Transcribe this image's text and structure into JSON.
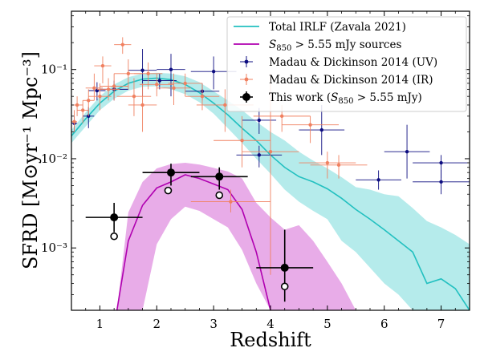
{
  "chart_data": {
    "type": "scatter",
    "title": "",
    "xlabel": "Redshift",
    "ylabel": "SFRD [M⊙yr⁻¹ Mpc⁻³]",
    "xlim": [
      0.5,
      7.5
    ],
    "ylim": [
      0.0002,
      0.45
    ],
    "yscale": "log",
    "x_ticks": [
      1,
      2,
      3,
      4,
      5,
      6,
      7
    ],
    "y_ticks": [
      {
        "value": 0.1,
        "label": "10⁻¹"
      },
      {
        "value": 0.01,
        "label": "10⁻²"
      },
      {
        "value": 0.001,
        "label": "10⁻³"
      }
    ],
    "legend_position": "top-right",
    "colors": {
      "total_irlf": "#22c0c0",
      "total_irlf_band": "#a8e8e8",
      "sources": "#b000b0",
      "sources_band": "#e6a3e6",
      "md_uv": "#0d0d80",
      "md_ir": "#f08060",
      "this_work": "#000000"
    },
    "series": [
      {
        "name": "Total IRLF (Zavala 2021)",
        "kind": "line_band",
        "color_key": "total_irlf",
        "band_color_key": "total_irlf_band",
        "x": [
          0.5,
          0.75,
          1.0,
          1.25,
          1.5,
          1.75,
          2.0,
          2.25,
          2.5,
          2.75,
          3.0,
          3.25,
          3.5,
          3.75,
          4.0,
          4.25,
          4.5,
          4.75,
          5.0,
          5.25,
          5.5,
          5.75,
          6.0,
          6.25,
          6.5,
          6.75,
          7.0,
          7.25,
          7.5
        ],
        "y": [
          0.018,
          0.028,
          0.042,
          0.057,
          0.07,
          0.078,
          0.08,
          0.077,
          0.068,
          0.055,
          0.042,
          0.031,
          0.022,
          0.016,
          0.011,
          0.008,
          0.0063,
          0.0055,
          0.0046,
          0.0036,
          0.0027,
          0.0021,
          0.0016,
          0.0012,
          0.0009,
          0.0004,
          0.00045,
          0.00035,
          0.0002
        ],
        "y_low": [
          0.015,
          0.023,
          0.035,
          0.047,
          0.058,
          0.064,
          0.065,
          0.06,
          0.053,
          0.043,
          0.032,
          0.022,
          0.015,
          0.01,
          0.0068,
          0.0045,
          0.0033,
          0.0026,
          0.0021,
          0.0012,
          0.0009,
          0.0006,
          0.0004,
          0.0003,
          0.0002,
          0.0002,
          0.0002,
          0.0002,
          0.0002
        ],
        "y_high": [
          0.021,
          0.033,
          0.05,
          0.068,
          0.082,
          0.09,
          0.092,
          0.09,
          0.084,
          0.072,
          0.057,
          0.045,
          0.035,
          0.026,
          0.02,
          0.016,
          0.012,
          0.0095,
          0.0078,
          0.0062,
          0.0048,
          0.0045,
          0.004,
          0.0038,
          0.0028,
          0.002,
          0.0017,
          0.0014,
          0.0011
        ]
      },
      {
        "name": "$S_{850} > 5.55\\,$mJy sources",
        "kind": "line_band",
        "color_key": "sources",
        "band_color_key": "sources_band",
        "x": [
          1.3,
          1.5,
          1.75,
          2.0,
          2.25,
          2.5,
          2.75,
          3.0,
          3.25,
          3.5,
          3.75,
          4.0,
          4.25,
          4.5,
          4.75,
          5.0,
          5.25,
          5.5
        ],
        "y": [
          0.0002,
          0.0012,
          0.003,
          0.0047,
          0.0055,
          0.0066,
          0.006,
          0.0052,
          0.0045,
          0.0027,
          0.0009,
          0.0002,
          null,
          null,
          null,
          null,
          null,
          null
        ],
        "y_low": [
          0.0002,
          0.0002,
          0.0002,
          0.0011,
          0.0021,
          0.0029,
          0.0026,
          0.0021,
          0.0017,
          0.00095,
          0.0004,
          0.0002,
          0.0002,
          0.0002,
          0.0002,
          0.0002,
          0.0002,
          0.0002
        ],
        "y_high": [
          0.0002,
          0.0025,
          0.0055,
          0.0078,
          0.0087,
          0.009,
          0.0086,
          0.0079,
          0.0072,
          0.006,
          0.0032,
          0.0022,
          0.0016,
          0.0018,
          0.0012,
          0.0007,
          0.0004,
          0.0002
        ]
      },
      {
        "name": "Madau & Dickinson 2014 (UV)",
        "kind": "errorbar",
        "color_key": "md_uv",
        "points": [
          {
            "x": 0.55,
            "y": 0.025,
            "xerr": 0.05,
            "ylo": 0.02,
            "yhi": 0.03
          },
          {
            "x": 0.8,
            "y": 0.03,
            "xerr": 0.1,
            "ylo": 0.022,
            "yhi": 0.038
          },
          {
            "x": 0.95,
            "y": 0.058,
            "xerr": 0.15,
            "ylo": 0.045,
            "yhi": 0.072
          },
          {
            "x": 1.25,
            "y": 0.06,
            "xerr": 0.25,
            "ylo": 0.045,
            "yhi": 0.075
          },
          {
            "x": 1.75,
            "y": 0.098,
            "xerr": 0.25,
            "ylo": 0.05,
            "yhi": 0.17
          },
          {
            "x": 2.05,
            "y": 0.075,
            "xerr": 0.3,
            "ylo": 0.06,
            "yhi": 0.09
          },
          {
            "x": 2.25,
            "y": 0.1,
            "xerr": 0.25,
            "ylo": 0.05,
            "yhi": 0.15
          },
          {
            "x": 2.8,
            "y": 0.057,
            "xerr": 0.3,
            "ylo": 0.045,
            "yhi": 0.07
          },
          {
            "x": 3.0,
            "y": 0.095,
            "xerr": 0.4,
            "ylo": 0.06,
            "yhi": 0.14
          },
          {
            "x": 3.8,
            "y": 0.027,
            "xerr": 0.3,
            "ylo": 0.019,
            "yhi": 0.037
          },
          {
            "x": 3.8,
            "y": 0.011,
            "xerr": 0.4,
            "ylo": 0.008,
            "yhi": 0.014
          },
          {
            "x": 4.9,
            "y": 0.021,
            "xerr": 0.4,
            "ylo": 0.011,
            "yhi": 0.04
          },
          {
            "x": 5.9,
            "y": 0.0058,
            "xerr": 0.4,
            "ylo": 0.0045,
            "yhi": 0.0074
          },
          {
            "x": 6.4,
            "y": 0.012,
            "xerr": 0.4,
            "ylo": 0.006,
            "yhi": 0.024
          },
          {
            "x": 7.0,
            "y": 0.009,
            "xerr": 0.5,
            "ylo": 0.006,
            "yhi": 0.011
          },
          {
            "x": 7.0,
            "y": 0.0055,
            "xerr": 0.5,
            "ylo": 0.004,
            "yhi": 0.0075
          }
        ]
      },
      {
        "name": "Madau & Dickinson 2014 (IR)",
        "kind": "errorbar",
        "color_key": "md_ir",
        "points": [
          {
            "x": 0.55,
            "y": 0.026,
            "xerr": 0.05,
            "ylo": 0.02,
            "yhi": 0.035
          },
          {
            "x": 0.6,
            "y": 0.04,
            "xerr": 0.1,
            "ylo": 0.03,
            "yhi": 0.05
          },
          {
            "x": 0.7,
            "y": 0.035,
            "xerr": 0.1,
            "ylo": 0.025,
            "yhi": 0.045
          },
          {
            "x": 0.8,
            "y": 0.045,
            "xerr": 0.1,
            "ylo": 0.03,
            "yhi": 0.06
          },
          {
            "x": 0.9,
            "y": 0.062,
            "xerr": 0.15,
            "ylo": 0.045,
            "yhi": 0.09
          },
          {
            "x": 1.0,
            "y": 0.05,
            "xerr": 0.2,
            "ylo": 0.035,
            "yhi": 0.07
          },
          {
            "x": 1.05,
            "y": 0.11,
            "xerr": 0.15,
            "ylo": 0.07,
            "yhi": 0.14
          },
          {
            "x": 1.15,
            "y": 0.06,
            "xerr": 0.2,
            "ylo": 0.045,
            "yhi": 0.08
          },
          {
            "x": 1.25,
            "y": 0.065,
            "xerr": 0.25,
            "ylo": 0.045,
            "yhi": 0.09
          },
          {
            "x": 1.4,
            "y": 0.19,
            "xerr": 0.15,
            "ylo": 0.15,
            "yhi": 0.23
          },
          {
            "x": 1.5,
            "y": 0.09,
            "xerr": 0.25,
            "ylo": 0.06,
            "yhi": 0.13
          },
          {
            "x": 1.6,
            "y": 0.05,
            "xerr": 0.3,
            "ylo": 0.03,
            "yhi": 0.08
          },
          {
            "x": 1.75,
            "y": 0.04,
            "xerr": 0.25,
            "ylo": 0.02,
            "yhi": 0.07
          },
          {
            "x": 1.85,
            "y": 0.09,
            "xerr": 0.25,
            "ylo": 0.06,
            "yhi": 0.12
          },
          {
            "x": 2.0,
            "y": 0.068,
            "xerr": 0.3,
            "ylo": 0.05,
            "yhi": 0.09
          },
          {
            "x": 2.3,
            "y": 0.062,
            "xerr": 0.3,
            "ylo": 0.04,
            "yhi": 0.09
          },
          {
            "x": 2.5,
            "y": 0.07,
            "xerr": 0.3,
            "ylo": 0.05,
            "yhi": 0.09
          },
          {
            "x": 2.8,
            "y": 0.05,
            "xerr": 0.3,
            "ylo": 0.035,
            "yhi": 0.07
          },
          {
            "x": 3.2,
            "y": 0.04,
            "xerr": 0.5,
            "ylo": 0.02,
            "yhi": 0.06
          },
          {
            "x": 3.5,
            "y": 0.016,
            "xerr": 0.5,
            "ylo": 0.008,
            "yhi": 0.03
          },
          {
            "x": 3.3,
            "y": 0.0033,
            "xerr": 0.7,
            "ylo": 0.0025,
            "yhi": 0.0045
          },
          {
            "x": 4.0,
            "y": 0.012,
            "xerr": 0.5,
            "ylo": 0.0005,
            "yhi": 0.09
          },
          {
            "x": 4.2,
            "y": 0.03,
            "xerr": 0.5,
            "ylo": 0.02,
            "yhi": 0.04
          },
          {
            "x": 4.7,
            "y": 0.024,
            "xerr": 0.5,
            "ylo": 0.015,
            "yhi": 0.03
          },
          {
            "x": 5.0,
            "y": 0.009,
            "xerr": 0.5,
            "ylo": 0.006,
            "yhi": 0.012
          },
          {
            "x": 5.2,
            "y": 0.0085,
            "xerr": 0.5,
            "ylo": 0.006,
            "yhi": 0.011
          }
        ]
      },
      {
        "name": "This work ($S_{850} > 5.55\\,$mJy)",
        "kind": "errorbar",
        "color_key": "this_work",
        "points": [
          {
            "x": 1.25,
            "y": 0.0022,
            "xerr": 0.5,
            "ylo": 0.0015,
            "yhi": 0.0032
          },
          {
            "x": 2.25,
            "y": 0.007,
            "xerr": 0.5,
            "ylo": 0.005,
            "yhi": 0.0088
          },
          {
            "x": 3.1,
            "y": 0.0063,
            "xerr": 0.5,
            "ylo": 0.0045,
            "yhi": 0.008
          },
          {
            "x": 4.25,
            "y": 0.0006,
            "xerr": 0.5,
            "ylo": 0.00025,
            "yhi": 0.0016
          }
        ],
        "open_markers": [
          {
            "x": 1.25,
            "y": 0.00135
          },
          {
            "x": 2.2,
            "y": 0.0044
          },
          {
            "x": 3.1,
            "y": 0.0039
          },
          {
            "x": 4.25,
            "y": 0.00037
          }
        ]
      }
    ]
  }
}
